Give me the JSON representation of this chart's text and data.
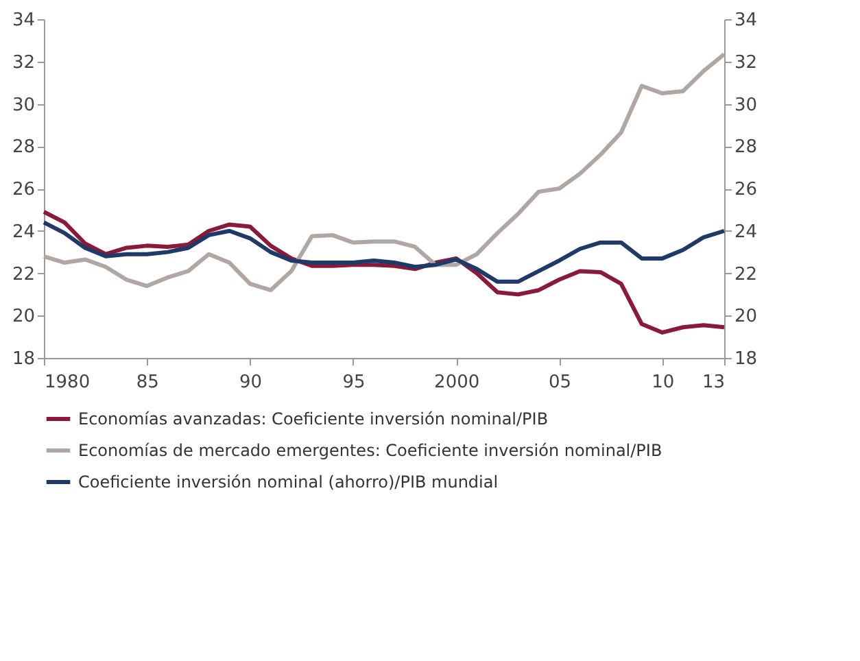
{
  "chart_data": {
    "type": "line",
    "x": [
      1980,
      1981,
      1982,
      1983,
      1984,
      1985,
      1986,
      1987,
      1988,
      1989,
      1990,
      1991,
      1992,
      1993,
      1994,
      1995,
      1996,
      1997,
      1998,
      1999,
      2000,
      2001,
      2002,
      2003,
      2004,
      2005,
      2006,
      2007,
      2008,
      2009,
      2010,
      2011,
      2012,
      2013
    ],
    "series": [
      {
        "name": "Economías avanzadas: Coeficiente inversión nominal/PIB",
        "color": "#8b1a3a",
        "values": [
          24.9,
          24.4,
          23.4,
          22.9,
          23.2,
          23.3,
          23.25,
          23.35,
          24.0,
          24.3,
          24.2,
          23.3,
          22.7,
          22.35,
          22.35,
          22.4,
          22.4,
          22.35,
          22.2,
          22.5,
          22.7,
          22.0,
          21.1,
          21.0,
          21.2,
          21.7,
          22.1,
          22.05,
          21.5,
          19.6,
          19.2,
          19.45,
          19.55,
          19.45
        ]
      },
      {
        "name": "Economías de mercado emergentes: Coeficiente inversión nominal/PIB",
        "color": "#b0a7a3",
        "values": [
          22.8,
          22.5,
          22.65,
          22.3,
          21.7,
          21.4,
          21.8,
          22.1,
          22.9,
          22.5,
          21.5,
          21.2,
          22.1,
          23.75,
          23.8,
          23.45,
          23.5,
          23.5,
          23.25,
          22.4,
          22.4,
          22.9,
          23.9,
          24.8,
          25.85,
          26.0,
          26.7,
          27.6,
          28.65,
          30.85,
          30.5,
          30.6,
          31.55,
          32.35
        ]
      },
      {
        "name": "Coeficiente inversión nominal (ahorro)/PIB mundial",
        "color": "#1f3a68",
        "values": [
          24.4,
          23.9,
          23.2,
          22.8,
          22.9,
          22.9,
          23.0,
          23.2,
          23.8,
          24.0,
          23.65,
          23.0,
          22.6,
          22.5,
          22.5,
          22.5,
          22.6,
          22.5,
          22.3,
          22.4,
          22.65,
          22.2,
          21.6,
          21.6,
          22.1,
          22.6,
          23.15,
          23.45,
          23.45,
          22.7,
          22.7,
          23.1,
          23.7,
          24.0
        ]
      }
    ],
    "xlim": [
      1980,
      2013
    ],
    "xticks": [
      {
        "value": 1980,
        "label": "1980"
      },
      {
        "value": 1985,
        "label": "85"
      },
      {
        "value": 1990,
        "label": "90"
      },
      {
        "value": 1995,
        "label": "95"
      },
      {
        "value": 2000,
        "label": "2000"
      },
      {
        "value": 2005,
        "label": "05"
      },
      {
        "value": 2010,
        "label": "10"
      },
      {
        "value": 2013,
        "label": "13"
      }
    ],
    "ylim": [
      18,
      34
    ],
    "yticks": [
      18,
      20,
      22,
      24,
      26,
      28,
      30,
      32,
      34
    ],
    "y2lim": [
      18,
      34
    ],
    "y2ticks": [
      18,
      20,
      22,
      24,
      26,
      28,
      30,
      32,
      34
    ],
    "grid": false,
    "legend": "bottom",
    "marker": "none",
    "line_style": "solid"
  }
}
